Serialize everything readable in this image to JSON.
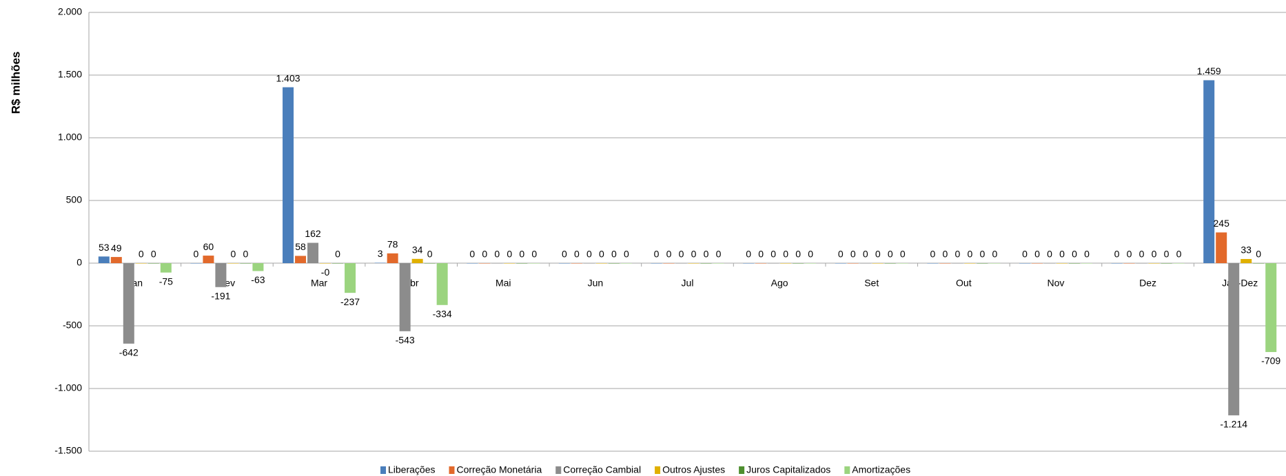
{
  "chart_data": {
    "type": "bar",
    "y_label": "R$ milhões",
    "categories": [
      "Jan",
      "Fev",
      "Mar",
      "Abr",
      "Mai",
      "Jun",
      "Jul",
      "Ago",
      "Set",
      "Out",
      "Nov",
      "Dez",
      "Jan-Dez"
    ],
    "series": [
      {
        "name": "Liberações",
        "color": "#4a7ebb",
        "values": [
          53,
          0,
          1403,
          3,
          0,
          0,
          0,
          0,
          0,
          0,
          0,
          0,
          1459
        ],
        "value_labels": [
          "53",
          "0",
          "1.403",
          "3",
          "0",
          "0",
          "0",
          "0",
          "0",
          "0",
          "0",
          "0",
          "1.459"
        ]
      },
      {
        "name": "Correção Monetária",
        "color": "#e2692b",
        "values": [
          49,
          60,
          58,
          78,
          0,
          0,
          0,
          0,
          0,
          0,
          0,
          0,
          245
        ],
        "value_labels": [
          "49",
          "60",
          "58",
          "78",
          "0",
          "0",
          "0",
          "0",
          "0",
          "0",
          "0",
          "0",
          "245"
        ]
      },
      {
        "name": "Correção Cambial",
        "color": "#8c8c8c",
        "values": [
          -642,
          -191,
          162,
          -543,
          0,
          0,
          0,
          0,
          0,
          0,
          0,
          0,
          -1214
        ],
        "value_labels": [
          "-642",
          "-191",
          "162",
          "-543",
          "0",
          "0",
          "0",
          "0",
          "0",
          "0",
          "0",
          "0",
          "-1.214"
        ]
      },
      {
        "name": "Outros Ajustes",
        "color": "#e0b000",
        "values": [
          0,
          0,
          -0.4,
          34,
          0,
          0,
          0,
          0,
          0,
          0,
          0,
          0,
          33
        ],
        "value_labels": [
          "0",
          "0",
          "-0",
          "34",
          "0",
          "0",
          "0",
          "0",
          "0",
          "0",
          "0",
          "0",
          "33"
        ]
      },
      {
        "name": "Juros Capitalizados",
        "color": "#4e8f2f",
        "values": [
          0,
          0,
          0,
          0,
          0,
          0,
          0,
          0,
          0,
          0,
          0,
          0,
          0
        ],
        "value_labels": [
          "0",
          "0",
          "0",
          "0",
          "0",
          "0",
          "0",
          "0",
          "0",
          "0",
          "0",
          "0",
          "0"
        ]
      },
      {
        "name": "Amortizações",
        "color": "#9bd47f",
        "values": [
          -75,
          -63,
          -237,
          -334,
          0,
          0,
          0,
          0,
          0,
          0,
          0,
          0,
          -709
        ],
        "value_labels": [
          "-75",
          "-63",
          "-237",
          "-334",
          "0",
          "0",
          "0",
          "0",
          "0",
          "0",
          "0",
          "0",
          "-709"
        ]
      }
    ],
    "ylim": [
      -1500,
      2000
    ],
    "yticks": [
      {
        "value": -1500,
        "label": "-1.500"
      },
      {
        "value": -1000,
        "label": "-1.000"
      },
      -500,
      0,
      500,
      {
        "value": 1000,
        "label": "1.000"
      },
      {
        "value": 1500,
        "label": "1.500"
      },
      {
        "value": 2000,
        "label": "2.000"
      }
    ],
    "grid": true,
    "legend": "bottom"
  }
}
